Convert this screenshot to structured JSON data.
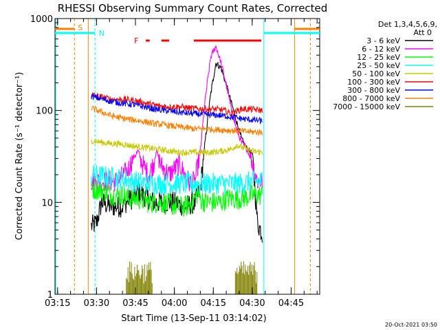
{
  "chart_data": {
    "type": "line",
    "title": "RHESSI Observing Summary Count Rates, Corrected",
    "xlabel": "Start Time (13-Sep-11 03:14:02)",
    "ylabel": "Corrected Count Rate (s⁻¹ detector⁻¹)",
    "xlim_minutes": [
      0,
      102
    ],
    "ylim": [
      1,
      1000
    ],
    "yscale": "log",
    "x_ticks": [
      {
        "label": "03:15",
        "t": 1
      },
      {
        "label": "03:30",
        "t": 16
      },
      {
        "label": "03:45",
        "t": 31
      },
      {
        "label": "04:00",
        "t": 46
      },
      {
        "label": "04:15",
        "t": 61
      },
      {
        "label": "04:30",
        "t": 76
      },
      {
        "label": "04:45",
        "t": 91
      }
    ],
    "y_ticks": [
      {
        "label": "1",
        "v": 1
      },
      {
        "label": "10",
        "v": 10
      },
      {
        "label": "100",
        "v": 100
      },
      {
        "label": "1000",
        "v": 1000
      }
    ],
    "legend_header": "Det 1,3,4,5,6,9,",
    "legend_att": "Att 0",
    "legend_placement": "right",
    "footer_date": "20-Oct-2021 03:50",
    "flags": [
      {
        "label": "S",
        "color": "#ff8000"
      },
      {
        "label": "N",
        "color": "#00ffff"
      },
      {
        "label": "F",
        "color": "#ff0000"
      }
    ],
    "series": [
      {
        "name": "3 - 6 keV",
        "color": "#000000",
        "points": [
          [
            14,
            5.5
          ],
          [
            16,
            6
          ],
          [
            18,
            10
          ],
          [
            22,
            9
          ],
          [
            26,
            9
          ],
          [
            28,
            10.5
          ],
          [
            30,
            11
          ],
          [
            32,
            13
          ],
          [
            34,
            12
          ],
          [
            36,
            11
          ],
          [
            38,
            10
          ],
          [
            42,
            10
          ],
          [
            46,
            10
          ],
          [
            50,
            9
          ],
          [
            54,
            10
          ],
          [
            56,
            14
          ],
          [
            58,
            50
          ],
          [
            60,
            150
          ],
          [
            62,
            330
          ],
          [
            64,
            290
          ],
          [
            66,
            190
          ],
          [
            68,
            120
          ],
          [
            70,
            75
          ],
          [
            72,
            48
          ],
          [
            74,
            38
          ],
          [
            76,
            34
          ],
          [
            77,
            15
          ],
          [
            78,
            6
          ],
          [
            80,
            4.5
          ]
        ]
      },
      {
        "name": "6 - 12 keV",
        "color": "#ff00ff",
        "points": [
          [
            14,
            17
          ],
          [
            16,
            17
          ],
          [
            20,
            17
          ],
          [
            24,
            17
          ],
          [
            28,
            22
          ],
          [
            30,
            30
          ],
          [
            32,
            36
          ],
          [
            34,
            25
          ],
          [
            36,
            20
          ],
          [
            38,
            26
          ],
          [
            39,
            37
          ],
          [
            41,
            25
          ],
          [
            44,
            20
          ],
          [
            46,
            23
          ],
          [
            48,
            26
          ],
          [
            50,
            20
          ],
          [
            52,
            16
          ],
          [
            54,
            17
          ],
          [
            56,
            36
          ],
          [
            58,
            140
          ],
          [
            60,
            380
          ],
          [
            62,
            500
          ],
          [
            64,
            330
          ],
          [
            66,
            190
          ],
          [
            68,
            100
          ],
          [
            70,
            62
          ],
          [
            72,
            44
          ],
          [
            74,
            38
          ],
          [
            76,
            28
          ],
          [
            78,
            17
          ],
          [
            80,
            17
          ]
        ]
      },
      {
        "name": "12 - 25 keV",
        "color": "#00ff00",
        "points": [
          [
            14,
            14
          ],
          [
            16,
            14
          ],
          [
            20,
            13
          ],
          [
            22,
            12
          ],
          [
            24,
            12
          ],
          [
            26,
            12
          ],
          [
            28,
            11
          ],
          [
            32,
            11
          ],
          [
            36,
            10
          ],
          [
            40,
            10
          ],
          [
            44,
            9.5
          ],
          [
            48,
            9
          ],
          [
            50,
            9
          ],
          [
            52,
            9.5
          ],
          [
            54,
            11
          ],
          [
            55,
            13
          ],
          [
            56,
            11
          ],
          [
            58,
            10
          ],
          [
            60,
            10
          ],
          [
            62,
            10
          ],
          [
            64,
            10
          ],
          [
            66,
            11
          ],
          [
            68,
            11
          ],
          [
            72,
            11
          ],
          [
            76,
            12
          ],
          [
            80,
            12
          ]
        ]
      },
      {
        "name": "25 - 50 keV",
        "color": "#00ffff",
        "points": [
          [
            14,
            20
          ],
          [
            20,
            19
          ],
          [
            26,
            18
          ],
          [
            30,
            17
          ],
          [
            36,
            16
          ],
          [
            42,
            16
          ],
          [
            48,
            16
          ],
          [
            52,
            16
          ],
          [
            56,
            16
          ],
          [
            60,
            16
          ],
          [
            64,
            16
          ],
          [
            68,
            16
          ],
          [
            72,
            16
          ],
          [
            76,
            17
          ],
          [
            80,
            17
          ]
        ]
      },
      {
        "name": "50 - 100 keV",
        "color": "#c8c800",
        "points": [
          [
            14,
            47
          ],
          [
            20,
            44
          ],
          [
            26,
            43
          ],
          [
            30,
            41
          ],
          [
            36,
            39
          ],
          [
            42,
            37
          ],
          [
            48,
            35
          ],
          [
            52,
            35
          ],
          [
            56,
            35
          ],
          [
            60,
            35
          ],
          [
            64,
            36
          ],
          [
            68,
            38
          ],
          [
            70,
            42
          ],
          [
            72,
            40
          ],
          [
            76,
            36
          ],
          [
            80,
            35
          ]
        ]
      },
      {
        "name": "100 - 300 keV",
        "color": "#ff0000",
        "points": [
          [
            14,
            148
          ],
          [
            18,
            140
          ],
          [
            22,
            132
          ],
          [
            26,
            132
          ],
          [
            28,
            131
          ],
          [
            32,
            126
          ],
          [
            36,
            118
          ],
          [
            40,
            112
          ],
          [
            44,
            110
          ],
          [
            48,
            110
          ],
          [
            52,
            106
          ],
          [
            56,
            104
          ],
          [
            60,
            104
          ],
          [
            64,
            102
          ],
          [
            66,
            98
          ],
          [
            68,
            92
          ],
          [
            70,
            98
          ],
          [
            72,
            104
          ],
          [
            76,
            103
          ],
          [
            80,
            100
          ]
        ]
      },
      {
        "name": "300 - 800 keV",
        "color": "#0000ff",
        "points": [
          [
            14,
            143
          ],
          [
            18,
            133
          ],
          [
            22,
            125
          ],
          [
            26,
            120
          ],
          [
            30,
            116
          ],
          [
            34,
            110
          ],
          [
            38,
            104
          ],
          [
            42,
            100
          ],
          [
            46,
            97
          ],
          [
            50,
            94
          ],
          [
            54,
            92
          ],
          [
            58,
            90
          ],
          [
            62,
            89
          ],
          [
            66,
            87
          ],
          [
            70,
            83
          ],
          [
            74,
            80
          ],
          [
            78,
            78
          ],
          [
            80,
            76
          ]
        ]
      },
      {
        "name": "800 - 7000 keV",
        "color": "#ff8000",
        "points": [
          [
            14,
            106
          ],
          [
            18,
            96
          ],
          [
            22,
            87
          ],
          [
            26,
            82
          ],
          [
            30,
            79
          ],
          [
            34,
            76
          ],
          [
            38,
            72
          ],
          [
            42,
            70
          ],
          [
            46,
            67
          ],
          [
            50,
            65
          ],
          [
            54,
            63
          ],
          [
            58,
            63
          ],
          [
            62,
            62
          ],
          [
            66,
            61
          ],
          [
            70,
            60
          ],
          [
            74,
            59
          ],
          [
            78,
            58
          ],
          [
            80,
            58
          ]
        ]
      },
      {
        "name": "7000 - 15000 keV",
        "color": "#808000",
        "points": [
          [
            27,
            2.2
          ],
          [
            29,
            2.0
          ],
          [
            31,
            2.3
          ],
          [
            33,
            2.1
          ],
          [
            35,
            2.0
          ],
          [
            37,
            2.2
          ],
          [
            69,
            2.2
          ],
          [
            71,
            2.0
          ],
          [
            73,
            2.3
          ],
          [
            75,
            2.1
          ],
          [
            77,
            2.2
          ]
        ]
      }
    ]
  }
}
